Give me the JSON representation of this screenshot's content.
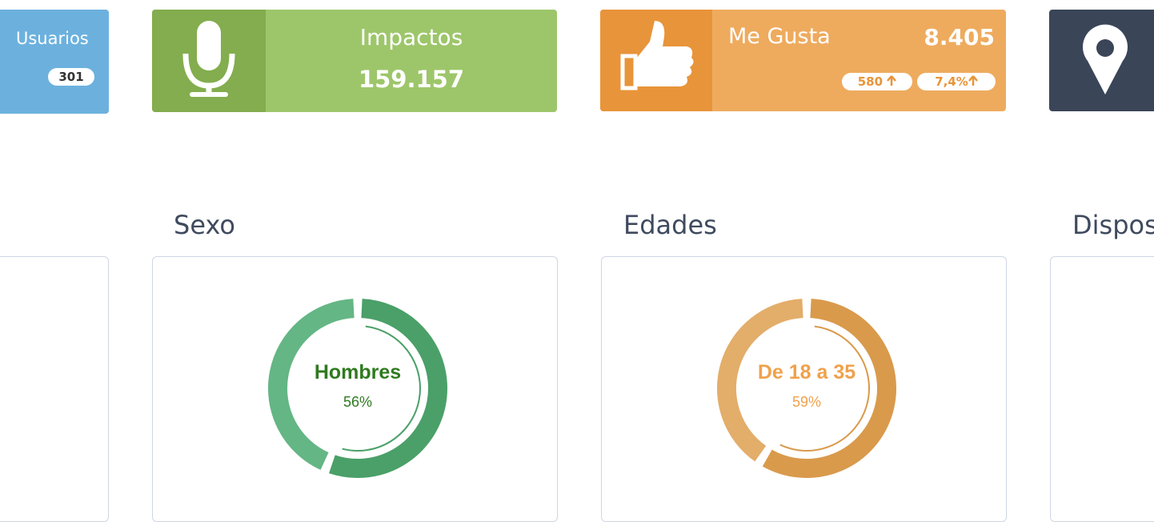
{
  "cards": [
    {
      "title": "Usuarios",
      "badge": "301"
    },
    {
      "title": "Impactos",
      "value": "159.157"
    },
    {
      "title": "Me Gusta",
      "value": "8.405",
      "badges": [
        "580",
        "7,4%"
      ]
    }
  ],
  "sections": [
    {
      "title": "Sexo",
      "label": "Hombres",
      "value": 56,
      "value_label": "56%",
      "color": "#4aa068",
      "rest_color": "#64b685",
      "text_color": "#2f7a1f"
    },
    {
      "title": "Edades",
      "label": "De 18 a 35",
      "value": 59,
      "value_label": "59%",
      "color": "#d99a4c",
      "rest_color": "#e3ad6a",
      "text_color": "#f0a14c"
    },
    {
      "title": "Dispos"
    }
  ]
}
